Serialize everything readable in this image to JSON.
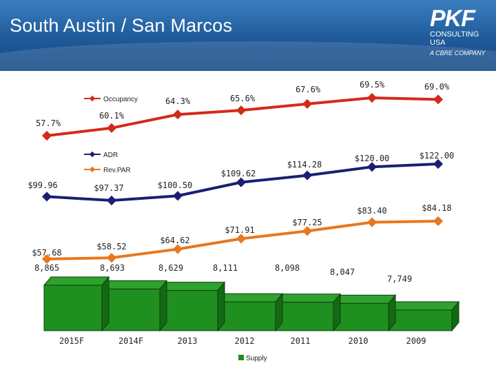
{
  "header": {
    "title": "South Austin / San Marcos",
    "logo_brand": "PKF",
    "logo_line1": "CONSULTING",
    "logo_line2": "USA",
    "logo_tagline": "A CBRE COMPANY"
  },
  "colors": {
    "occupancy": "#d42a1a",
    "adr": "#1b1f73",
    "revpar": "#e8771e",
    "supply": "#1f8f1f",
    "header": "#1f5a99"
  },
  "chart_data": {
    "type": "line",
    "categories": [
      "2015F",
      "2014F",
      "2013",
      "2012",
      "2011",
      "2010",
      "2009"
    ],
    "series": [
      {
        "name": "Occupancy",
        "values": [
          57.7,
          60.1,
          64.3,
          65.6,
          67.6,
          69.5,
          69.0
        ],
        "labels": [
          "57.7%",
          "60.1%",
          "64.3%",
          "65.6%",
          "67.6%",
          "69.5%",
          "69.0%"
        ]
      },
      {
        "name": "ADR",
        "values": [
          99.96,
          97.37,
          100.5,
          109.62,
          114.28,
          120.0,
          122.0
        ],
        "labels": [
          "$99.96",
          "$97.37",
          "$100.50",
          "$109.62",
          "$114.28",
          "$120.00",
          "$122.00"
        ]
      },
      {
        "name": "Rev.PAR",
        "values": [
          57.68,
          58.52,
          64.62,
          71.91,
          77.25,
          83.4,
          84.18
        ],
        "labels": [
          "$57.68",
          "$58.52",
          "$64.62",
          "$71.91",
          "$77.25",
          "$83.40",
          "$84.18"
        ]
      },
      {
        "name": "Supply",
        "type": "bar",
        "values": [
          8865,
          8693,
          8629,
          8111,
          8098,
          8047,
          7749
        ],
        "labels": [
          "8,865",
          "8,693",
          "8,629",
          "8,111",
          "8,098",
          "8,047",
          "7,749"
        ]
      }
    ],
    "legend": [
      "Occupancy",
      "ADR",
      "Rev.PAR",
      "Supply"
    ]
  }
}
